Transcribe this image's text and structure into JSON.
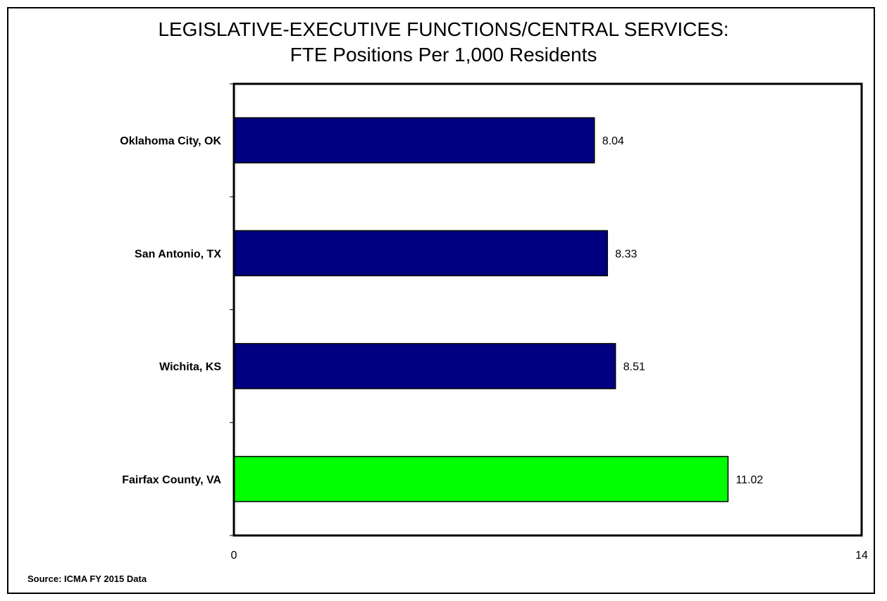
{
  "chart_data": {
    "type": "bar",
    "orientation": "horizontal",
    "title_line1": "LEGISLATIVE-EXECUTIVE FUNCTIONS/CENTRAL SERVICES:",
    "title_line2": "FTE Positions Per 1,000 Residents",
    "categories": [
      "Oklahoma City, OK",
      "San Antonio, TX",
      "Wichita, KS",
      "Fairfax County, VA"
    ],
    "values": [
      8.04,
      8.33,
      8.51,
      11.02
    ],
    "value_labels": [
      "8.04",
      "8.33",
      "8.51",
      "11.02"
    ],
    "bar_colors": [
      "#000080",
      "#000080",
      "#000080",
      "#00ff00"
    ],
    "xlim": [
      0,
      14
    ],
    "x_tick_labels": [
      "0",
      "14"
    ],
    "xlabel": "",
    "ylabel": "",
    "grid": false,
    "legend": "none"
  },
  "source": "Source: ICMA FY 2015 Data"
}
